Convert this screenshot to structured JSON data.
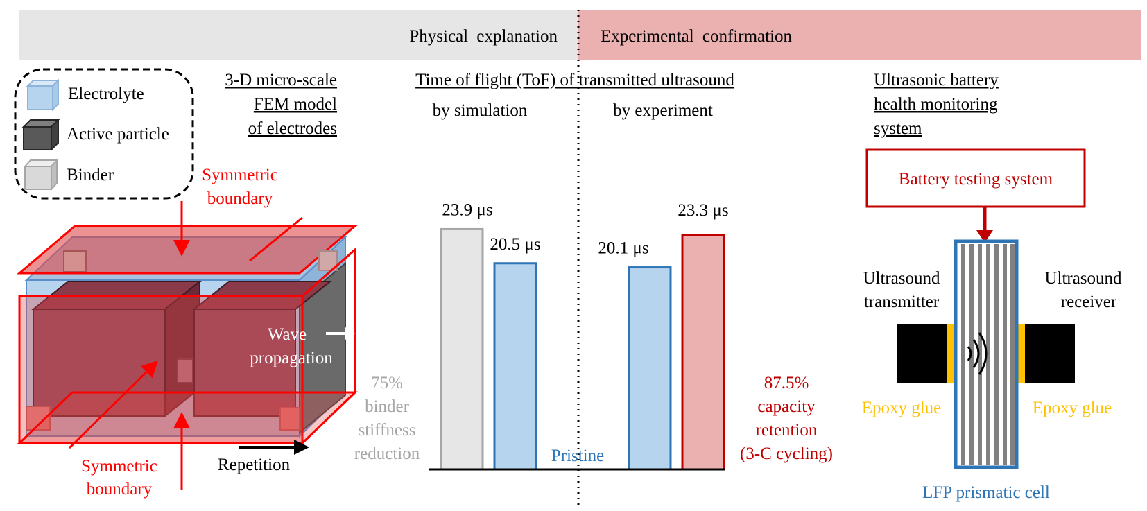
{
  "header": {
    "left_title": "Physical explanation",
    "right_title": "Experimental confirmation",
    "left_color": "#e6e6e6",
    "right_color": "#ebb0b0"
  },
  "legend": {
    "items": [
      {
        "label": "Electrolyte",
        "icon": "electrolyte-cube-icon",
        "color": "#b7d4ee"
      },
      {
        "label": "Active particle",
        "icon": "active-particle-cube-icon",
        "color": "#595959"
      },
      {
        "label": "Binder",
        "icon": "binder-cube-icon",
        "color": "#d9d9d9"
      }
    ]
  },
  "fem_model": {
    "title_lines": [
      "3-D micro-scale",
      "FEM model",
      "of electrodes"
    ],
    "symmetric_boundary_top": [
      "Symmetric",
      "boundary"
    ],
    "symmetric_boundary_bottom": [
      "Symmetric",
      "boundary"
    ],
    "wave_propagation": [
      "Wave",
      "propagation"
    ],
    "repetition": "Repetition"
  },
  "tof": {
    "title": "Time of flight (ToF) of transmitted ultrasound",
    "sim_label": "by simulation",
    "exp_label": "by experiment",
    "baseline_label": "Pristine",
    "left_note": [
      "75%",
      "binder",
      "stiffness",
      "reduction"
    ],
    "right_note": [
      "87.5%",
      "capacity",
      "retention",
      "(3-C cycling)"
    ]
  },
  "chart_data": {
    "type": "bar",
    "title": "Time of flight (ToF) of transmitted ultrasound",
    "unit": "μs",
    "categories": [
      "Simulation: 75% binder stiffness reduction",
      "Simulation: Pristine",
      "Experiment: Pristine",
      "Experiment: 87.5% capacity retention (3-C cycling)"
    ],
    "bars": [
      {
        "group": "by simulation",
        "state": "75% binder stiffness reduction",
        "value": 23.9,
        "label": "23.9 μs",
        "color": "#e6e6e6",
        "stroke": "#a6a6a6"
      },
      {
        "group": "by simulation",
        "state": "Pristine",
        "value": 20.5,
        "label": "20.5 μs",
        "color": "#b7d4ee",
        "stroke": "#2e75b6"
      },
      {
        "group": "by experiment",
        "state": "Pristine",
        "value": 20.1,
        "label": "20.1 μs",
        "color": "#b7d4ee",
        "stroke": "#2e75b6"
      },
      {
        "group": "by experiment",
        "state": "87.5% capacity retention (3-C cycling)",
        "value": 23.3,
        "label": "23.3 μs",
        "color": "#ebb0b0",
        "stroke": "#c00000"
      }
    ]
  },
  "monitoring": {
    "title_lines": [
      "Ultrasonic battery",
      "health monitoring",
      "system"
    ],
    "testing_system": "Battery testing system",
    "transmitter": [
      "Ultrasound",
      "transmitter"
    ],
    "receiver": [
      "Ultrasound",
      "receiver"
    ],
    "glue_left": "Epoxy glue",
    "glue_right": "Epoxy glue",
    "cell": "LFP prismatic cell"
  },
  "colors": {
    "red": "#ff0000",
    "dark_red": "#c00000",
    "blue": "#2e75b6",
    "gray_text": "#a6a6a6",
    "glue": "#ffc000"
  }
}
